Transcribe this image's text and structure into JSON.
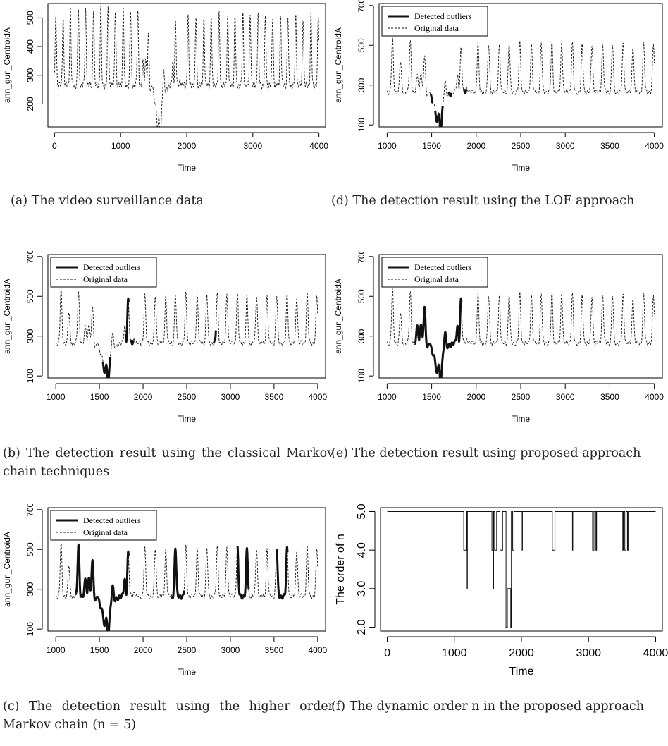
{
  "captions": {
    "a": "(a) The video surveillance data",
    "b": "(b) The detection result using the classical Markov chain techniques",
    "c": "(c) The detection result using the higher order Markov chain (n = 5)",
    "d": "(d) The detection result using the LOF approach",
    "e": "(e) The detection result using proposed approach",
    "f": "(f) The dynamic order n in the proposed approach"
  },
  "chart_data": [
    {
      "id": "a",
      "type": "line",
      "xlabel": "Time",
      "ylabel": "ann_gun_CentroidA",
      "xlim": [
        -100,
        4100
      ],
      "ylim": [
        120,
        550
      ],
      "xticks": [
        0,
        1000,
        2000,
        3000,
        4000
      ],
      "yticks": [
        200,
        300,
        400,
        500
      ],
      "legend": null,
      "x_range": [
        1,
        4000
      ],
      "original_series": {
        "name": "Original data",
        "style": "dashed",
        "baseline": 265,
        "peaks": [
          [
            20,
            510
          ],
          [
            130,
            505
          ],
          [
            240,
            528
          ],
          [
            360,
            530
          ],
          [
            470,
            528
          ],
          [
            590,
            532
          ],
          [
            700,
            531
          ],
          [
            810,
            536
          ],
          [
            920,
            532
          ],
          [
            1040,
            531
          ],
          [
            1150,
            525
          ],
          [
            1260,
            520
          ],
          [
            1340,
            350
          ],
          [
            1380,
            370
          ],
          [
            1420,
            445
          ],
          [
            1480,
            300
          ],
          [
            1560,
            200
          ],
          [
            1600,
            140
          ],
          [
            1650,
            370
          ],
          [
            1790,
            345
          ],
          [
            1830,
            485
          ],
          [
            1900,
            285
          ],
          [
            2020,
            505
          ],
          [
            2140,
            505
          ],
          [
            2260,
            500
          ],
          [
            2370,
            510
          ],
          [
            2490,
            512
          ],
          [
            2620,
            503
          ],
          [
            2730,
            509
          ],
          [
            2850,
            510
          ],
          [
            2960,
            515
          ],
          [
            3080,
            510
          ],
          [
            3190,
            500
          ],
          [
            3300,
            505
          ],
          [
            3420,
            505
          ],
          [
            3530,
            505
          ],
          [
            3650,
            506
          ],
          [
            3760,
            500
          ],
          [
            3880,
            508
          ],
          [
            3990,
            505
          ]
        ]
      }
    },
    {
      "id": "b",
      "type": "line",
      "xlabel": "Time",
      "ylabel": "ann_gun_CentroidA",
      "xlim": [
        910,
        4090
      ],
      "ylim": [
        90,
        710
      ],
      "xticks": [
        1000,
        1500,
        2000,
        2500,
        3000,
        3500,
        4000
      ],
      "yticks": [
        100,
        300,
        500,
        700
      ],
      "legend": {
        "position": "top-left",
        "entries": [
          "Detected outliers",
          "Original data"
        ]
      },
      "x_range": [
        1000,
        4000
      ],
      "original_series": {
        "name": "Original data",
        "style": "dashed",
        "baseline": 265,
        "peaks": [
          [
            1060,
            531
          ],
          [
            1150,
            420
          ],
          [
            1260,
            520
          ],
          [
            1340,
            350
          ],
          [
            1380,
            370
          ],
          [
            1420,
            445
          ],
          [
            1480,
            300
          ],
          [
            1560,
            200
          ],
          [
            1600,
            140
          ],
          [
            1650,
            370
          ],
          [
            1790,
            345
          ],
          [
            1830,
            485
          ],
          [
            1900,
            285
          ],
          [
            2020,
            505
          ],
          [
            2140,
            505
          ],
          [
            2260,
            500
          ],
          [
            2370,
            510
          ],
          [
            2490,
            512
          ],
          [
            2620,
            503
          ],
          [
            2730,
            509
          ],
          [
            2850,
            510
          ],
          [
            2960,
            515
          ],
          [
            3080,
            510
          ],
          [
            3190,
            500
          ],
          [
            3300,
            505
          ],
          [
            3420,
            505
          ],
          [
            3530,
            505
          ],
          [
            3650,
            506
          ],
          [
            3760,
            500
          ],
          [
            3880,
            508
          ],
          [
            3990,
            505
          ]
        ]
      },
      "outlier_segments": [
        [
          1540,
          1625
        ],
        [
          1800,
          1835
        ],
        [
          1860,
          1890
        ],
        [
          2810,
          2835
        ]
      ]
    },
    {
      "id": "c",
      "type": "line",
      "xlabel": "Time",
      "ylabel": "ann_gun_CentroidA",
      "xlim": [
        910,
        4090
      ],
      "ylim": [
        90,
        710
      ],
      "xticks": [
        1000,
        1500,
        2000,
        2500,
        3000,
        3500,
        4000
      ],
      "yticks": [
        100,
        300,
        500,
        700
      ],
      "legend": {
        "position": "top-left",
        "entries": [
          "Detected outliers",
          "Original data"
        ]
      },
      "x_range": [
        1000,
        4000
      ],
      "original_series": {
        "name": "Original data",
        "style": "dashed",
        "baseline": 265,
        "peaks": [
          [
            1060,
            531
          ],
          [
            1150,
            420
          ],
          [
            1260,
            520
          ],
          [
            1340,
            350
          ],
          [
            1380,
            370
          ],
          [
            1420,
            445
          ],
          [
            1480,
            300
          ],
          [
            1560,
            200
          ],
          [
            1600,
            140
          ],
          [
            1650,
            370
          ],
          [
            1790,
            345
          ],
          [
            1830,
            485
          ],
          [
            1900,
            285
          ],
          [
            2020,
            505
          ],
          [
            2140,
            505
          ],
          [
            2260,
            500
          ],
          [
            2370,
            510
          ],
          [
            2490,
            512
          ],
          [
            2620,
            503
          ],
          [
            2730,
            509
          ],
          [
            2850,
            510
          ],
          [
            2960,
            515
          ],
          [
            3080,
            510
          ],
          [
            3190,
            500
          ],
          [
            3300,
            505
          ],
          [
            3420,
            505
          ],
          [
            3530,
            505
          ],
          [
            3650,
            506
          ],
          [
            3760,
            500
          ],
          [
            3880,
            508
          ],
          [
            3990,
            505
          ]
        ]
      },
      "outlier_segments": [
        [
          1225,
          1835
        ],
        [
          2330,
          2470
        ],
        [
          3080,
          3210
        ],
        [
          3530,
          3655
        ]
      ]
    },
    {
      "id": "d",
      "type": "line",
      "xlabel": "Time",
      "ylabel": "ann_gun_CentroidA",
      "xlim": [
        910,
        4090
      ],
      "ylim": [
        90,
        710
      ],
      "xticks": [
        1000,
        1500,
        2000,
        2500,
        3000,
        3500,
        4000
      ],
      "yticks": [
        100,
        300,
        500,
        700
      ],
      "legend": {
        "position": "top-left",
        "entries": [
          "Detected outliers",
          "Original data"
        ]
      },
      "x_range": [
        1000,
        4000
      ],
      "original_series": {
        "name": "Original data",
        "style": "dashed",
        "baseline": 265,
        "peaks": [
          [
            1060,
            531
          ],
          [
            1150,
            420
          ],
          [
            1260,
            520
          ],
          [
            1340,
            350
          ],
          [
            1380,
            370
          ],
          [
            1420,
            445
          ],
          [
            1480,
            300
          ],
          [
            1560,
            200
          ],
          [
            1600,
            140
          ],
          [
            1650,
            370
          ],
          [
            1790,
            345
          ],
          [
            1830,
            485
          ],
          [
            1900,
            285
          ],
          [
            2020,
            505
          ],
          [
            2140,
            505
          ],
          [
            2260,
            500
          ],
          [
            2370,
            510
          ],
          [
            2490,
            512
          ],
          [
            2620,
            503
          ],
          [
            2730,
            509
          ],
          [
            2850,
            510
          ],
          [
            2960,
            515
          ],
          [
            3080,
            510
          ],
          [
            3190,
            500
          ],
          [
            3300,
            505
          ],
          [
            3420,
            505
          ],
          [
            3530,
            505
          ],
          [
            3650,
            506
          ],
          [
            3760,
            500
          ],
          [
            3880,
            508
          ],
          [
            3990,
            505
          ]
        ]
      },
      "outlier_segments": [
        [
          1490,
          1510
        ],
        [
          1540,
          1625
        ],
        [
          1690,
          1720
        ],
        [
          1860,
          1890
        ]
      ]
    },
    {
      "id": "e",
      "type": "line",
      "xlabel": "Time",
      "ylabel": "ann_gun_CentroidA",
      "xlim": [
        910,
        4090
      ],
      "ylim": [
        90,
        710
      ],
      "xticks": [
        1000,
        1500,
        2000,
        2500,
        3000,
        3500,
        4000
      ],
      "yticks": [
        100,
        300,
        500,
        700
      ],
      "legend": {
        "position": "top-left",
        "entries": [
          "Detected outliers",
          "Original data"
        ]
      },
      "x_range": [
        1000,
        4000
      ],
      "original_series": {
        "name": "Original data",
        "style": "dashed",
        "baseline": 265,
        "peaks": [
          [
            1060,
            531
          ],
          [
            1150,
            420
          ],
          [
            1260,
            520
          ],
          [
            1340,
            350
          ],
          [
            1380,
            370
          ],
          [
            1420,
            445
          ],
          [
            1480,
            300
          ],
          [
            1560,
            200
          ],
          [
            1600,
            140
          ],
          [
            1650,
            370
          ],
          [
            1790,
            345
          ],
          [
            1830,
            485
          ],
          [
            1900,
            285
          ],
          [
            2020,
            505
          ],
          [
            2140,
            505
          ],
          [
            2260,
            500
          ],
          [
            2370,
            510
          ],
          [
            2490,
            512
          ],
          [
            2620,
            503
          ],
          [
            2730,
            509
          ],
          [
            2850,
            510
          ],
          [
            2960,
            515
          ],
          [
            3080,
            510
          ],
          [
            3190,
            500
          ],
          [
            3300,
            505
          ],
          [
            3420,
            505
          ],
          [
            3530,
            505
          ],
          [
            3650,
            506
          ],
          [
            3760,
            500
          ],
          [
            3880,
            508
          ],
          [
            3990,
            505
          ]
        ]
      },
      "outlier_segments": [
        [
          1310,
          1835
        ]
      ]
    },
    {
      "id": "f",
      "type": "line",
      "xlabel": "Time",
      "ylabel": "The order of n",
      "xlim": [
        -100,
        4100
      ],
      "ylim": [
        1.9,
        5.1
      ],
      "xticks": [
        0,
        1000,
        2000,
        3000,
        4000
      ],
      "yticks": [
        2.0,
        3.0,
        4.0,
        5.0
      ],
      "legend": null,
      "step_points": [
        [
          1,
          5
        ],
        [
          1140,
          5
        ],
        [
          1140,
          4
        ],
        [
          1180,
          4
        ],
        [
          1180,
          5
        ],
        [
          1190,
          5
        ],
        [
          1190,
          3
        ],
        [
          1195,
          3
        ],
        [
          1195,
          5
        ],
        [
          1560,
          5
        ],
        [
          1560,
          4
        ],
        [
          1580,
          4
        ],
        [
          1580,
          3
        ],
        [
          1585,
          3
        ],
        [
          1585,
          5
        ],
        [
          1600,
          5
        ],
        [
          1600,
          4
        ],
        [
          1630,
          4
        ],
        [
          1630,
          5
        ],
        [
          1680,
          5
        ],
        [
          1680,
          4
        ],
        [
          1720,
          4
        ],
        [
          1720,
          5
        ],
        [
          1770,
          5
        ],
        [
          1770,
          2
        ],
        [
          1790,
          2
        ],
        [
          1790,
          3
        ],
        [
          1840,
          3
        ],
        [
          1840,
          2
        ],
        [
          1850,
          2
        ],
        [
          1850,
          5
        ],
        [
          1870,
          5
        ],
        [
          1870,
          4
        ],
        [
          1890,
          4
        ],
        [
          1890,
          5
        ],
        [
          2010,
          5
        ],
        [
          2010,
          4
        ],
        [
          2015,
          4
        ],
        [
          2015,
          5
        ],
        [
          2460,
          5
        ],
        [
          2460,
          4
        ],
        [
          2500,
          4
        ],
        [
          2500,
          5
        ],
        [
          2760,
          5
        ],
        [
          2760,
          4
        ],
        [
          2765,
          4
        ],
        [
          2765,
          5
        ],
        [
          3060,
          5
        ],
        [
          3060,
          4
        ],
        [
          3080,
          4
        ],
        [
          3080,
          5
        ],
        [
          3110,
          5
        ],
        [
          3110,
          4
        ],
        [
          3120,
          4
        ],
        [
          3120,
          5
        ],
        [
          3510,
          5
        ],
        [
          3510,
          4
        ],
        [
          3520,
          4
        ],
        [
          3520,
          5
        ],
        [
          3540,
          5
        ],
        [
          3540,
          4
        ],
        [
          3560,
          4
        ],
        [
          3560,
          5
        ],
        [
          3580,
          5
        ],
        [
          3580,
          4
        ],
        [
          3590,
          4
        ],
        [
          3590,
          5
        ],
        [
          4000,
          5
        ]
      ]
    }
  ]
}
